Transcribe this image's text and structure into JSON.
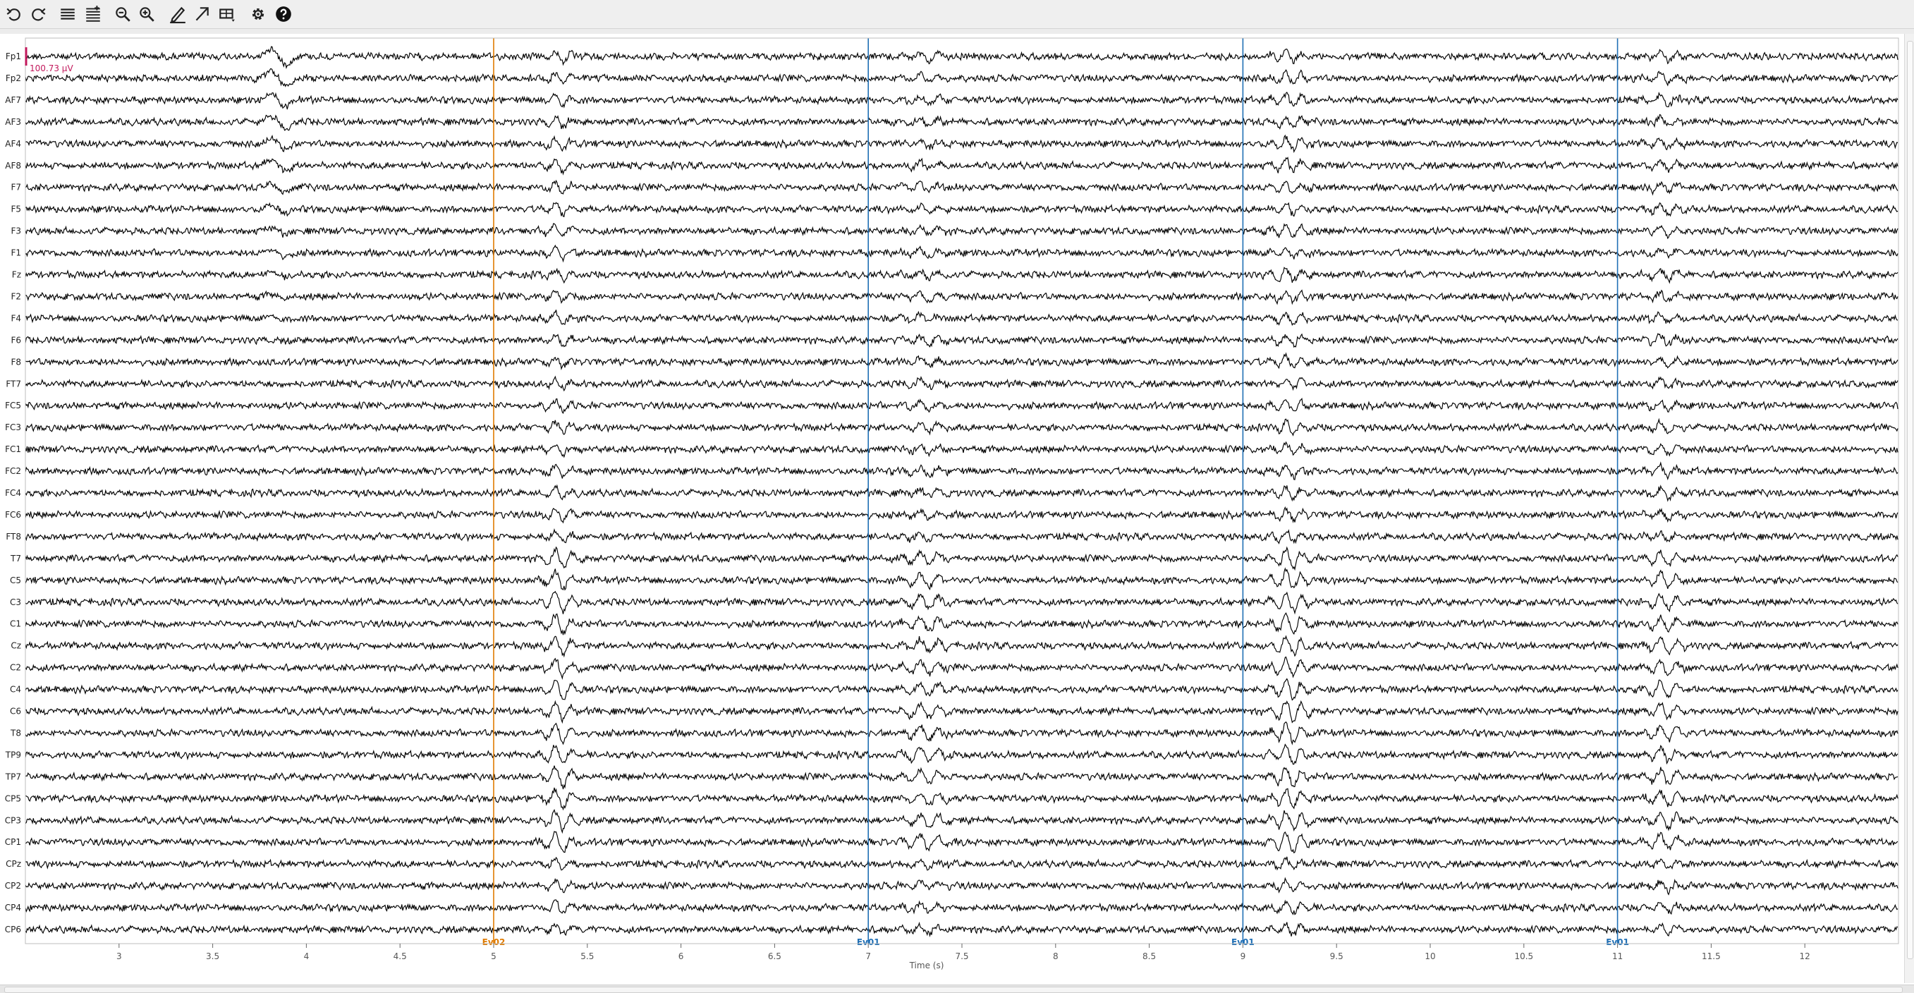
{
  "toolbar": {
    "buttons": [
      {
        "name": "undo-button",
        "icon": "undo-icon"
      },
      {
        "name": "redo-button",
        "icon": "redo-icon"
      },
      {
        "name": "decrease-channels-button",
        "icon": "lines-fewer-icon"
      },
      {
        "name": "increase-channels-button",
        "icon": "lines-more-icon"
      },
      {
        "name": "zoom-out-button",
        "icon": "zoom-out-icon"
      },
      {
        "name": "zoom-in-button",
        "icon": "zoom-in-icon"
      },
      {
        "name": "annotate-button",
        "icon": "pen-icon"
      },
      {
        "name": "arrow-button",
        "icon": "arrow-icon"
      },
      {
        "name": "projector-button",
        "icon": "projector-icon"
      },
      {
        "name": "settings-button",
        "icon": "gear-icon"
      },
      {
        "name": "help-button",
        "icon": "help-icon"
      }
    ]
  },
  "plot": {
    "scale_bar_label": "100.73 µV",
    "xlabel": "Time (s)",
    "x_range": [
      2.5,
      12.5
    ],
    "channels": [
      "Fp1",
      "Fp2",
      "AF7",
      "AF3",
      "AF4",
      "AF8",
      "F7",
      "F5",
      "F3",
      "F1",
      "Fz",
      "F2",
      "F4",
      "F6",
      "F8",
      "FT7",
      "FC5",
      "FC3",
      "FC1",
      "FC2",
      "FC4",
      "FC6",
      "FT8",
      "T7",
      "C5",
      "C3",
      "C1",
      "Cz",
      "C2",
      "C4",
      "C6",
      "T8",
      "TP9",
      "TP7",
      "CP5",
      "CP3",
      "CP1",
      "CPz",
      "CP2",
      "CP4",
      "CP6"
    ],
    "ticks": [
      {
        "value": 3,
        "label": "3"
      },
      {
        "value": 3.5,
        "label": "3.5"
      },
      {
        "value": 4,
        "label": "4"
      },
      {
        "value": 4.5,
        "label": "4.5"
      },
      {
        "value": 5,
        "label": "5"
      },
      {
        "value": 5.5,
        "label": "5.5"
      },
      {
        "value": 6,
        "label": "6"
      },
      {
        "value": 6.5,
        "label": "6.5"
      },
      {
        "value": 7,
        "label": "7"
      },
      {
        "value": 7.5,
        "label": "7.5"
      },
      {
        "value": 8,
        "label": "8"
      },
      {
        "value": 8.5,
        "label": "8.5"
      },
      {
        "value": 9,
        "label": "9"
      },
      {
        "value": 9.5,
        "label": "9.5"
      },
      {
        "value": 10,
        "label": "10"
      },
      {
        "value": 10.5,
        "label": "10.5"
      },
      {
        "value": 11,
        "label": "11"
      },
      {
        "value": 11.5,
        "label": "11.5"
      },
      {
        "value": 12,
        "label": "12"
      }
    ],
    "events": [
      {
        "time": 5,
        "label": "Ev02",
        "color": "#e07b00"
      },
      {
        "time": 7,
        "label": "Ev01",
        "color": "#1f6fb5"
      },
      {
        "time": 9,
        "label": "Ev01",
        "color": "#1f6fb5"
      },
      {
        "time": 11,
        "label": "Ev01",
        "color": "#1f6fb5"
      }
    ],
    "trace_color": "#000000",
    "scale_color": "#c2185b"
  }
}
